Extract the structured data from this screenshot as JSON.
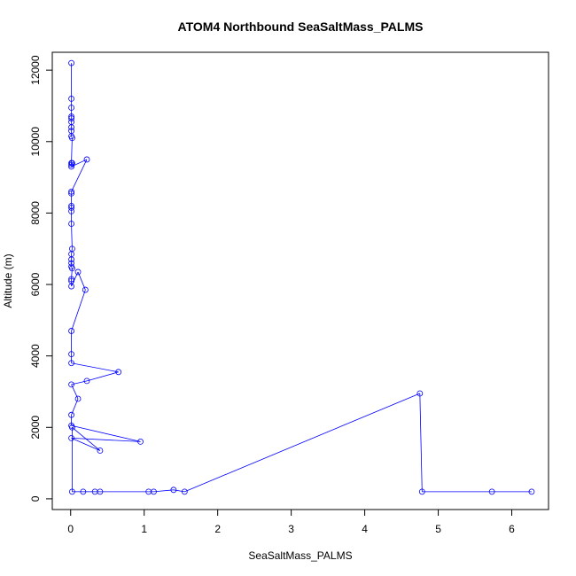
{
  "chart_data": {
    "type": "line",
    "title": "ATOM4 Northbound SeaSaltMass_PALMS",
    "xlabel": "SeaSaltMass_PALMS",
    "ylabel": "Altitude (m)",
    "xlim": [
      -0.25,
      6.5
    ],
    "ylim": [
      -300,
      12500
    ],
    "xticks": [
      0,
      1,
      2,
      3,
      4,
      5,
      6
    ],
    "yticks": [
      0,
      2000,
      4000,
      6000,
      8000,
      10000,
      12000
    ],
    "grid": false,
    "series": [
      {
        "color": "#0000ff",
        "marker": "open-circle",
        "x": [
          0.01,
          0.01,
          0.01,
          0.01,
          0.01,
          0.01,
          0.01,
          0.01,
          0.01,
          0.02,
          0.01,
          0.01,
          0.02,
          0.01,
          0.22,
          0.01,
          0.01,
          0.01,
          0.01,
          0.01,
          0.01,
          0.02,
          0.01,
          0.01,
          0.01,
          0.01,
          0.02,
          0.01,
          0.01,
          0.01,
          0.1,
          0.2,
          0.01,
          0.01,
          0.01,
          0.65,
          0.22,
          0.01,
          0.1,
          0.01,
          0.01,
          0.95,
          0.01,
          0.4,
          0.02,
          0.02,
          0.17,
          0.33,
          0.4,
          1.06,
          1.13,
          1.4,
          1.55,
          4.75,
          4.78,
          5.73,
          6.27
        ],
        "y": [
          12200,
          11200,
          10950,
          10700,
          10650,
          10550,
          10400,
          10300,
          10150,
          10100,
          9400,
          9350,
          9400,
          9300,
          9500,
          8600,
          8550,
          8200,
          8150,
          8050,
          7700,
          7000,
          6850,
          6700,
          6600,
          6500,
          6450,
          6150,
          6100,
          5950,
          6350,
          5850,
          4700,
          4050,
          3800,
          3550,
          3300,
          3200,
          2800,
          2350,
          2050,
          1600,
          1700,
          1350,
          2000,
          200,
          200,
          200,
          200,
          200,
          200,
          250,
          200,
          2950,
          200,
          200,
          200
        ]
      }
    ]
  }
}
